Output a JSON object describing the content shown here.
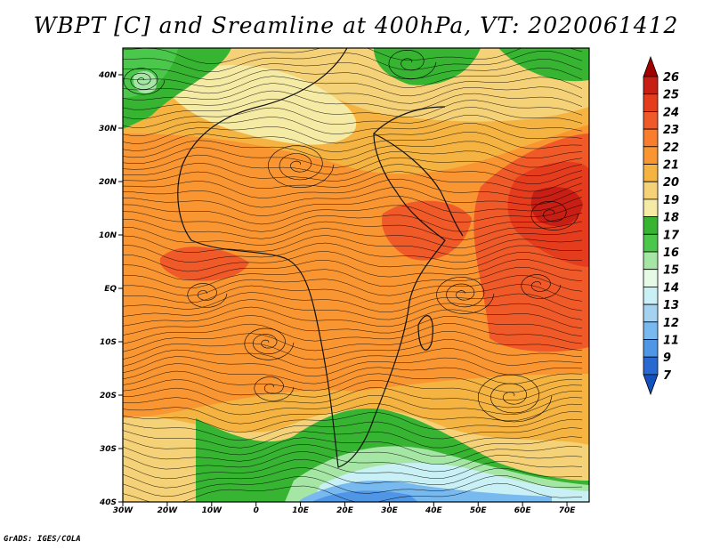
{
  "title": "WBPT [C] and Sreamline at 400hPa, VT: 2020061412",
  "credit": "GrADS: IGES/COLA",
  "map": {
    "lon_range": [
      -30,
      75
    ],
    "lat_range": [
      -40,
      45
    ],
    "lat_ticks": [
      "40N",
      "30N",
      "20N",
      "10N",
      "EQ",
      "10S",
      "20S",
      "30S",
      "40S"
    ],
    "lon_ticks": [
      "30W",
      "20W",
      "10W",
      "0",
      "10E",
      "20E",
      "30E",
      "40E",
      "50E",
      "60E",
      "70E"
    ],
    "variable": "Wet-bulb potential temperature",
    "overlay": "streamlines",
    "level": "400hPa",
    "valid_time": "2020061412"
  },
  "colorbar": {
    "labels": [
      "26",
      "25",
      "24",
      "23",
      "22",
      "21",
      "20",
      "19",
      "18",
      "17",
      "16",
      "15",
      "14",
      "13",
      "12",
      "11",
      "9",
      "7"
    ],
    "colors": [
      "#a00000",
      "#c81e14",
      "#e63c1e",
      "#f05a28",
      "#fa7d2d",
      "#fa9632",
      "#f5b442",
      "#f5d278",
      "#f5eba5",
      "#37b432",
      "#4bc84b",
      "#a5e6a5",
      "#e6fae6",
      "#c8f0f5",
      "#a5d2f0",
      "#78b9f0",
      "#5096e6",
      "#2869d2",
      "#1450be"
    ]
  },
  "colors": {
    "background": "#ffffff",
    "border": "#000000"
  }
}
